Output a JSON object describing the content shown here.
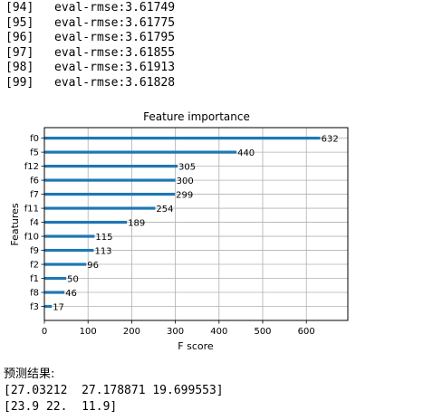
{
  "log": [
    {
      "iter": "[94]",
      "metric": "eval-rmse:3.61749"
    },
    {
      "iter": "[95]",
      "metric": "eval-rmse:3.61775"
    },
    {
      "iter": "[96]",
      "metric": "eval-rmse:3.61795"
    },
    {
      "iter": "[97]",
      "metric": "eval-rmse:3.61855"
    },
    {
      "iter": "[98]",
      "metric": "eval-rmse:3.61913"
    },
    {
      "iter": "[99]",
      "metric": "eval-rmse:3.61828"
    }
  ],
  "chart_data": {
    "type": "bar",
    "orientation": "horizontal",
    "title": "Feature importance",
    "xlabel": "F score",
    "ylabel": "Features",
    "categories": [
      "f0",
      "f5",
      "f12",
      "f6",
      "f7",
      "f11",
      "f4",
      "f10",
      "f9",
      "f2",
      "f1",
      "f8",
      "f3"
    ],
    "values": [
      632,
      440,
      305,
      300,
      299,
      254,
      189,
      115,
      113,
      96,
      50,
      46,
      17
    ],
    "value_labels": [
      "632",
      "440",
      "305",
      "300",
      "299",
      "254",
      "189",
      "115",
      "113",
      "96",
      "50",
      "46",
      "17"
    ],
    "xlim": [
      0,
      695
    ],
    "xticks": [
      0,
      100,
      200,
      300,
      400,
      500,
      600
    ],
    "xtick_labels": [
      "0",
      "100",
      "200",
      "300",
      "400",
      "500",
      "600"
    ],
    "grid": true,
    "bar_color": "#1f77b4"
  },
  "result": {
    "title": "预测结果:",
    "predictions": "[27.03212  27.178871 19.699553]",
    "actual": "[23.9 22.  11.9]"
  }
}
